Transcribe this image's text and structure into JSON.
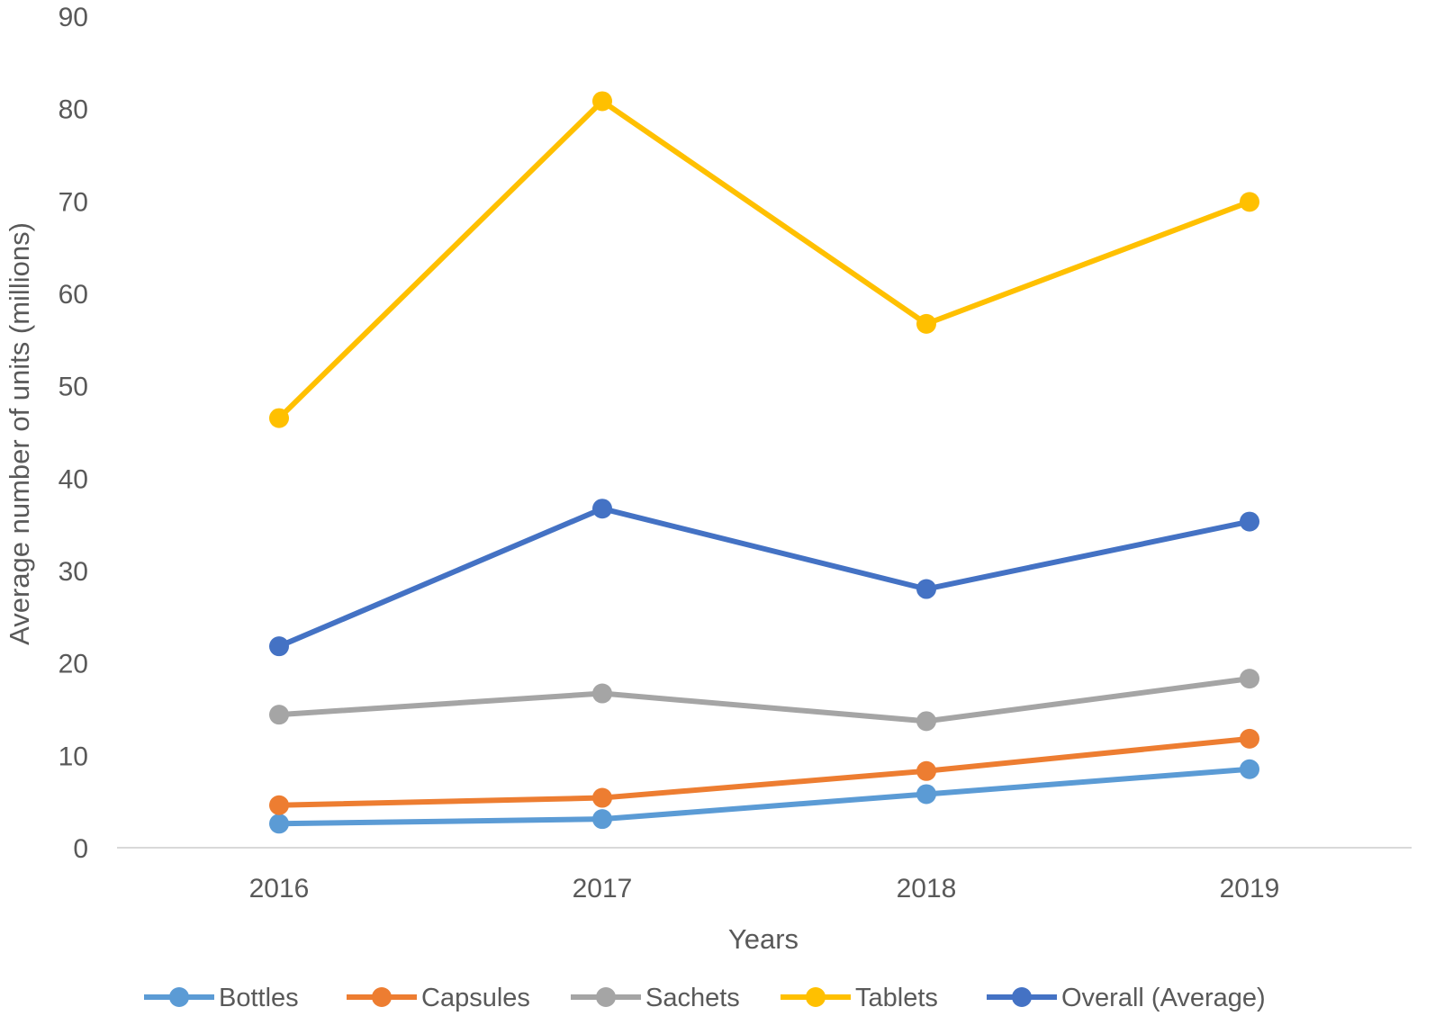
{
  "chart_data": {
    "type": "line",
    "title": "",
    "xlabel": "Years",
    "ylabel": "Average number of units (millions)",
    "categories": [
      "2016",
      "2017",
      "2018",
      "2019"
    ],
    "ylim": [
      0,
      90
    ],
    "yticks": [
      0,
      10,
      20,
      30,
      40,
      50,
      60,
      70,
      80,
      90
    ],
    "grid": false,
    "legend_position": "bottom",
    "series": [
      {
        "name": "Bottles",
        "color": "#5B9BD5",
        "values": [
          2.6,
          3.1,
          5.8,
          8.5
        ]
      },
      {
        "name": "Capsules",
        "color": "#ED7D31",
        "values": [
          4.6,
          5.4,
          8.3,
          11.8
        ]
      },
      {
        "name": "Sachets",
        "color": "#A5A5A5",
        "values": [
          14.4,
          16.7,
          13.7,
          18.3
        ]
      },
      {
        "name": "Tablets",
        "color": "#FFC000",
        "values": [
          46.5,
          80.8,
          56.7,
          69.9
        ]
      },
      {
        "name": "Overall (Average)",
        "color": "#4472C4",
        "values": [
          21.8,
          36.7,
          28.0,
          35.3
        ]
      }
    ]
  }
}
